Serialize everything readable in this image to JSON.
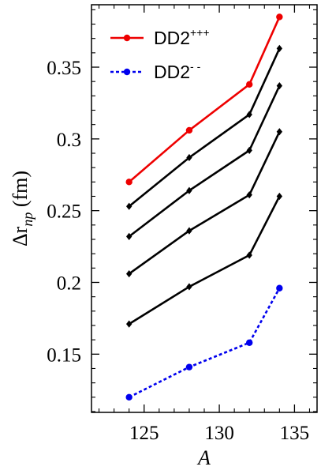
{
  "chart_data": {
    "type": "line",
    "xlabel": "A",
    "ylabel": "Δr_np (fm)",
    "ylabel_main": "Δr",
    "ylabel_sub": "np",
    "ylabel_unit": " (fm)",
    "xlim": [
      121.5,
      136.5
    ],
    "ylim": [
      0.10943,
      0.3935
    ],
    "xticks": [
      125,
      130,
      135
    ],
    "xtick_labels": [
      "125",
      "130",
      "135"
    ],
    "yticks": [
      0.15,
      0.2,
      0.25,
      0.3,
      0.35
    ],
    "ytick_labels": [
      "0.15",
      "0.2",
      "0.25",
      "0.3",
      "0.35"
    ],
    "grid": false,
    "legend_position": "top-left",
    "x": [
      124,
      128,
      132,
      134
    ],
    "series": [
      {
        "name": "DD2+++",
        "label_base": "DD2",
        "label_sup": "+++",
        "color": "#ee0000",
        "marker": "circle",
        "dash": "solid",
        "values": [
          0.27,
          0.306,
          0.338,
          0.385
        ]
      },
      {
        "color": "#000000",
        "marker": "diamond",
        "dash": "solid",
        "values": [
          0.253,
          0.287,
          0.317,
          0.363
        ]
      },
      {
        "color": "#000000",
        "marker": "diamond",
        "dash": "solid",
        "values": [
          0.232,
          0.264,
          0.292,
          0.337
        ]
      },
      {
        "color": "#000000",
        "marker": "diamond",
        "dash": "solid",
        "values": [
          0.206,
          0.236,
          0.261,
          0.305
        ]
      },
      {
        "color": "#000000",
        "marker": "diamond",
        "dash": "solid",
        "values": [
          0.171,
          0.197,
          0.219,
          0.26
        ]
      },
      {
        "name": "DD2--",
        "label_base": "DD2",
        "label_sup": "- -",
        "color": "#0000ee",
        "marker": "circle",
        "dash": "dotted",
        "values": [
          0.12,
          0.141,
          0.158,
          0.196
        ]
      }
    ]
  }
}
